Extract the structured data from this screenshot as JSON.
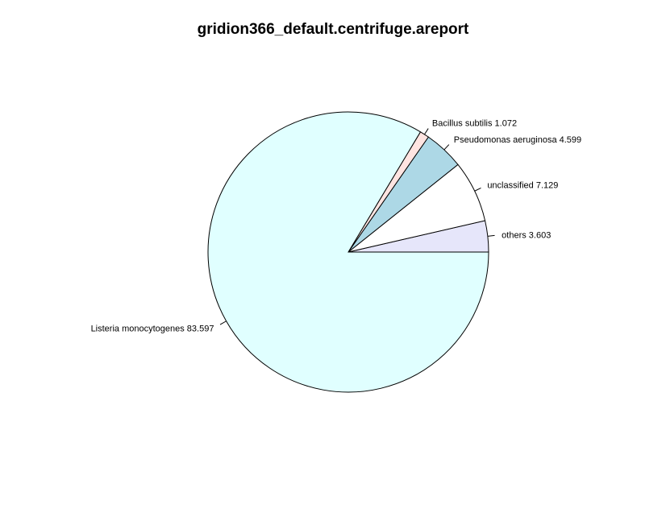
{
  "chart_data": {
    "type": "pie",
    "title": "gridion366_default.centrifuge.areport",
    "slices": [
      {
        "name": "others",
        "value": 3.603,
        "label": "others 3.603",
        "color": "#e6e6fa"
      },
      {
        "name": "unclassified",
        "value": 7.129,
        "label": "unclassified 7.129",
        "color": "#ffffff"
      },
      {
        "name": "Pseudomonas aeruginosa",
        "value": 4.599,
        "label": "Pseudomonas aeruginosa 4.599",
        "color": "#add8e6"
      },
      {
        "name": "Bacillus subtilis",
        "value": 1.072,
        "label": "Bacillus subtilis 1.072",
        "color": "#ffe4e1"
      },
      {
        "name": "Listeria monocytogenes",
        "value": 83.597,
        "label": "Listeria monocytogenes 83.597",
        "color": "#e0ffff"
      }
    ],
    "start": "3 o'clock",
    "direction": "counterclockwise",
    "legend": "none"
  }
}
